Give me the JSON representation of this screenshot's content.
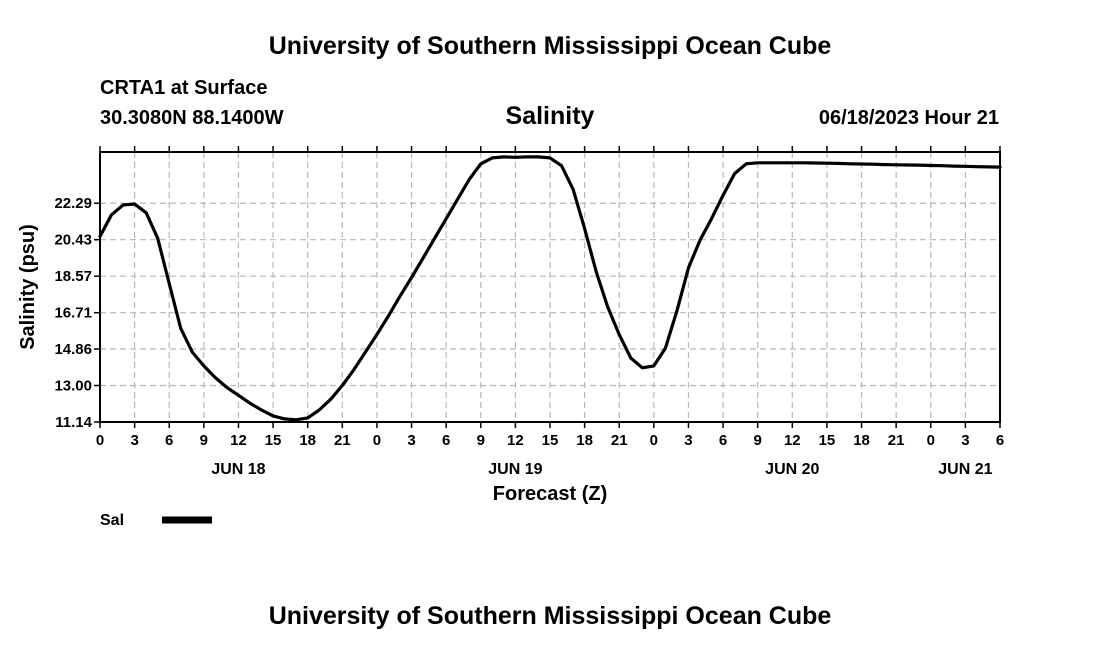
{
  "header": {
    "title": "University of Southern Mississippi Ocean Cube",
    "station": "CRTA1 at Surface",
    "coords": "30.3080N  88.1400W",
    "parameter": "Salinity",
    "timestamp": "06/18/2023 Hour 21"
  },
  "footer": {
    "title": "University of Southern Mississippi Ocean Cube"
  },
  "legend": {
    "label": "Sal",
    "color": "#000000"
  },
  "chart_data": {
    "type": "line",
    "title": "Salinity",
    "xlabel": "Forecast (Z)",
    "ylabel": "Salinity (psu)",
    "xlim": [
      0,
      78
    ],
    "ylim": [
      11.14,
      24.9
    ],
    "yticks": [
      "11.14",
      "13.00",
      "14.86",
      "16.71",
      "18.57",
      "20.43",
      "22.29"
    ],
    "ytick_values": [
      11.14,
      13.0,
      14.86,
      16.71,
      18.57,
      20.43,
      22.29
    ],
    "xtick_labels": [
      "0",
      "3",
      "6",
      "9",
      "12",
      "15",
      "18",
      "21",
      "0",
      "3",
      "6",
      "9",
      "12",
      "15",
      "18",
      "21",
      "0",
      "3",
      "6",
      "9",
      "12",
      "15",
      "18",
      "21",
      "0",
      "3",
      "6"
    ],
    "date_labels": [
      {
        "label": "JUN 18",
        "x": 12
      },
      {
        "label": "JUN 19",
        "x": 36
      },
      {
        "label": "JUN 20",
        "x": 60
      },
      {
        "label": "JUN 21",
        "x": 75
      }
    ],
    "grid": true,
    "series": [
      {
        "name": "Sal",
        "color": "#000000",
        "x": [
          0,
          1,
          2,
          3,
          4,
          5,
          6,
          7,
          8,
          9,
          10,
          11,
          12,
          13,
          14,
          15,
          16,
          17,
          18,
          19,
          20,
          21,
          22,
          23,
          24,
          25,
          26,
          27,
          28,
          29,
          30,
          31,
          32,
          33,
          34,
          35,
          36,
          37,
          38,
          39,
          40,
          41,
          42,
          43,
          44,
          45,
          46,
          47,
          48,
          49,
          50,
          51,
          52,
          53,
          54,
          55,
          56,
          57,
          58,
          59,
          60,
          61,
          62,
          63,
          64,
          65,
          66,
          67,
          68,
          69,
          70,
          71,
          72,
          73,
          74,
          75,
          76,
          77,
          78
        ],
        "values": [
          20.6,
          21.7,
          22.2,
          22.25,
          21.8,
          20.5,
          18.2,
          15.9,
          14.7,
          14.0,
          13.4,
          12.9,
          12.5,
          12.1,
          11.75,
          11.45,
          11.3,
          11.25,
          11.35,
          11.75,
          12.3,
          13.0,
          13.8,
          14.7,
          15.6,
          16.55,
          17.55,
          18.5,
          19.5,
          20.5,
          21.5,
          22.5,
          23.5,
          24.3,
          24.6,
          24.65,
          24.63,
          24.65,
          24.65,
          24.6,
          24.2,
          23.0,
          21.0,
          18.8,
          17.0,
          15.6,
          14.4,
          13.9,
          14.0,
          14.9,
          16.8,
          19.0,
          20.4,
          21.5,
          22.7,
          23.8,
          24.3,
          24.35,
          24.35,
          24.35,
          24.35,
          24.35,
          24.34,
          24.33,
          24.32,
          24.3,
          24.29,
          24.28,
          24.26,
          24.25,
          24.24,
          24.23,
          24.21,
          24.2,
          24.18,
          24.17,
          24.15,
          24.14,
          24.13
        ]
      }
    ]
  }
}
